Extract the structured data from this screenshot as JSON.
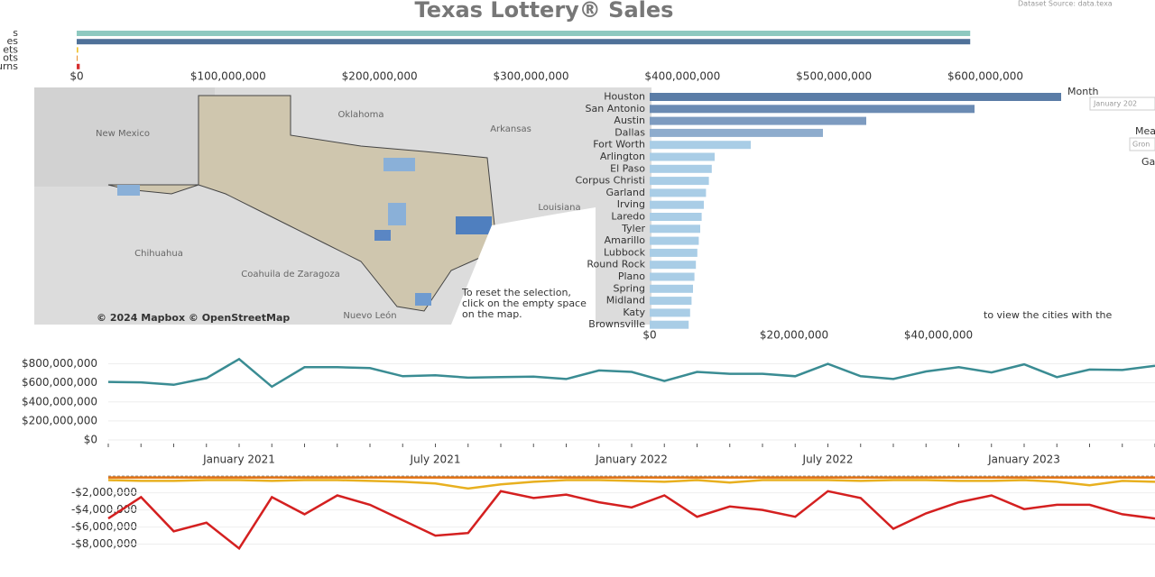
{
  "header": {
    "title": "Texas Lottery® Sales",
    "source": "Dataset Source: data.texa"
  },
  "chart_data": [
    {
      "type": "hbar",
      "categories": [
        "s",
        "es",
        "ets",
        "ots",
        "urns"
      ],
      "values": [
        590000000,
        590000000,
        1000000,
        500000,
        2000000
      ],
      "colors": [
        "#8ec9c0",
        "#4f7199",
        "#f0c330",
        "#e8902c",
        "#d62f2f"
      ],
      "xlim": [
        0,
        600000000
      ],
      "xticks": [
        {
          "value": 0,
          "label": "$0"
        },
        {
          "value": 100000000,
          "label": "$100,000,000"
        },
        {
          "value": 200000000,
          "label": "$200,000,000"
        },
        {
          "value": 300000000,
          "label": "$300,000,000"
        },
        {
          "value": 400000000,
          "label": "$400,000,000"
        },
        {
          "value": 500000000,
          "label": "$500,000,000"
        },
        {
          "value": 600000000,
          "label": "$600,000,000"
        }
      ]
    },
    {
      "type": "hbar",
      "categories": [
        "Houston",
        "San Antonio",
        "Austin",
        "Dallas",
        "Fort Worth",
        "Arlington",
        "El Paso",
        "Corpus Christi",
        "Garland",
        "Irving",
        "Laredo",
        "Tyler",
        "Amarillo",
        "Lubbock",
        "Round Rock",
        "Plano",
        "Spring",
        "Midland",
        "Katy",
        "Brownsville"
      ],
      "values": [
        57000000,
        45000000,
        30000000,
        24000000,
        14000000,
        9000000,
        8600000,
        8200000,
        7800000,
        7500000,
        7200000,
        7000000,
        6800000,
        6600000,
        6400000,
        6200000,
        6000000,
        5800000,
        5600000,
        5400000
      ],
      "colors": [
        "#5a7ca6",
        "#6b8bb3",
        "#7d9bc0",
        "#8eaccd",
        "#a9cde6",
        "#a9cde6",
        "#a9cde6",
        "#a9cde6",
        "#a9cde6",
        "#a9cde6",
        "#a9cde6",
        "#a9cde6",
        "#a9cde6",
        "#a9cde6",
        "#a9cde6",
        "#a9cde6",
        "#a9cde6",
        "#a9cde6",
        "#a9cde6",
        "#a9cde6"
      ],
      "xlim": [
        0,
        60000000
      ],
      "xticks": [
        {
          "value": 0,
          "label": "$0"
        },
        {
          "value": 20000000,
          "label": "$20,000,000"
        },
        {
          "value": 40000000,
          "label": "$40,000,000"
        }
      ]
    },
    {
      "type": "line",
      "categories": [
        null,
        null,
        null,
        null,
        "January 2021",
        null,
        null,
        null,
        null,
        null,
        "July 2021",
        null,
        null,
        null,
        null,
        null,
        "January 2022",
        null,
        null,
        null,
        null,
        null,
        "July 2022",
        null,
        null,
        null,
        null,
        null,
        "January 2023",
        null,
        null,
        null,
        null
      ],
      "series": [
        {
          "color": "#3a8c93",
          "values": [
            610000000,
            605000000,
            580000000,
            650000000,
            850000000,
            560000000,
            765000000,
            765000000,
            755000000,
            670000000,
            680000000,
            655000000,
            660000000,
            665000000,
            640000000,
            730000000,
            715000000,
            620000000,
            715000000,
            695000000,
            695000000,
            670000000,
            800000000,
            670000000,
            640000000,
            720000000,
            765000000,
            710000000,
            795000000,
            660000000,
            740000000,
            735000000,
            780000000
          ]
        }
      ],
      "ylim": [
        0,
        900000000
      ],
      "yticks": [
        {
          "value": 0,
          "label": "$0"
        },
        {
          "value": 200000000,
          "label": "$200,000,000"
        },
        {
          "value": 400000000,
          "label": "$400,000,000"
        },
        {
          "value": 600000000,
          "label": "$600,000,000"
        },
        {
          "value": 800000000,
          "label": "$800,000,000"
        }
      ],
      "grid": true
    },
    {
      "type": "line",
      "series": [
        {
          "color": "#d42020",
          "values": [
            -5000000,
            -2500000,
            -6500000,
            -5500000,
            -8500000,
            -2500000,
            -4500000,
            -2300000,
            -3400000,
            -5200000,
            -7000000,
            -6700000,
            -1800000,
            -2600000,
            -2200000,
            -3100000,
            -3700000,
            -2300000,
            -4800000,
            -3600000,
            -4000000,
            -4800000,
            -1800000,
            -2600000,
            -6200000,
            -4400000,
            -3100000,
            -2300000,
            -3900000,
            -3400000,
            -3400000,
            -4500000,
            -5000000
          ]
        },
        {
          "color": "#e8b020",
          "values": [
            -500000,
            -600000,
            -600000,
            -500000,
            -500000,
            -600000,
            -500000,
            -500000,
            -600000,
            -700000,
            -900000,
            -1500000,
            -1000000,
            -700000,
            -500000,
            -500000,
            -600000,
            -700000,
            -500000,
            -800000,
            -500000,
            -500000,
            -500000,
            -600000,
            -500000,
            -500000,
            -600000,
            -600000,
            -500000,
            -700000,
            -1100000,
            -600000,
            -700000
          ]
        },
        {
          "color": "#e07010",
          "values": [
            -200000,
            -200000,
            -200000,
            -200000,
            -200000,
            -200000,
            -200000,
            -200000,
            -200000,
            -200000,
            -200000,
            -200000,
            -200000,
            -200000,
            -200000,
            -200000,
            -200000,
            -200000,
            -200000,
            -200000,
            -200000,
            -200000,
            -200000,
            -200000,
            -200000,
            -200000,
            -200000,
            -200000,
            -200000,
            -200000,
            -200000,
            -200000,
            -200000
          ]
        }
      ],
      "ylim": [
        -9000000,
        500000
      ],
      "yticks": [
        {
          "value": -2000000,
          "label": "-$2,000,000"
        },
        {
          "value": -4000000,
          "label": "-$4,000,000"
        },
        {
          "value": -6000000,
          "label": "-$6,000,000"
        },
        {
          "value": -8000000,
          "label": "-$8,000,000"
        }
      ],
      "grid": true
    }
  ],
  "map": {
    "labels": [
      "Oklahoma",
      "New Mexico",
      "Arkansas",
      "Louisiana",
      "Chihuahua",
      "Coahuila de Zaragoza",
      "Nuevo León"
    ],
    "attribution": "© 2024 Mapbox © OpenStreetMap",
    "note": [
      "To reset the selection,",
      "click on the empty space",
      "on the map."
    ]
  },
  "cities_note": "to view the cities with the",
  "side_panel": {
    "month_label": "Month",
    "month_value": "January 202",
    "measure_label": "Measu",
    "measure_value": "Gron",
    "other_label": "Ga"
  }
}
